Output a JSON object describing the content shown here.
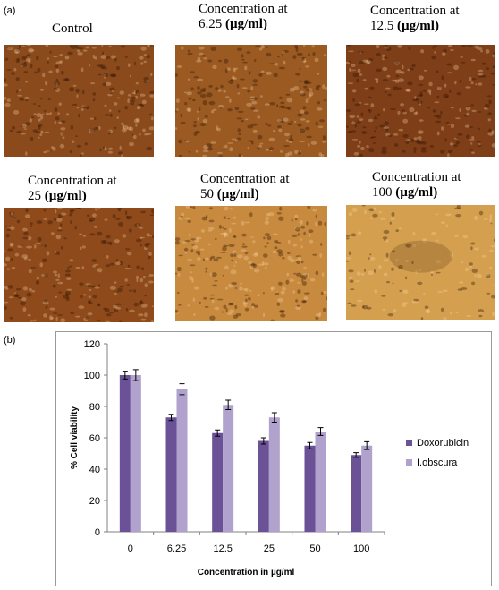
{
  "panel_a_label": "(a)",
  "panel_b_label": "(b)",
  "images": [
    {
      "caption_line1": "Control",
      "caption_num": "",
      "caption_unit": "",
      "tone": "#8a4a1c"
    },
    {
      "caption_line1": "Concentration at",
      "caption_num": "6.25",
      "caption_unit": "(µg/ml)",
      "tone": "#9a5a22"
    },
    {
      "caption_line1": "Concentration at",
      "caption_num": "12.5",
      "caption_unit": "(µg/ml)",
      "tone": "#7e3e18"
    },
    {
      "caption_line1": "Concentration at",
      "caption_num": "25",
      "caption_unit": "(µg/ml)",
      "tone": "#8e4a1a"
    },
    {
      "caption_line1": "Concentration at",
      "caption_num": "50",
      "caption_unit": "(µg/ml)",
      "tone": "#c88a3e"
    },
    {
      "caption_line1": "Concentration at",
      "caption_num": "100",
      "caption_unit": "(µg/ml)",
      "tone": "#d4a050"
    }
  ],
  "chart_data": {
    "type": "bar",
    "title": "",
    "xlabel": "Concentration in µg/ml",
    "ylabel": "% Cell viability",
    "categories": [
      "0",
      "6.25",
      "12.5",
      "25",
      "50",
      "100"
    ],
    "ylim": [
      0,
      120
    ],
    "yticks": [
      "0",
      "20",
      "40",
      "60",
      "80",
      "100",
      "120"
    ],
    "grid": false,
    "legend_position": "right",
    "series": [
      {
        "name": "Doxorubicin",
        "color": "#6b5296",
        "values": [
          100,
          73,
          63,
          58,
          55,
          49
        ],
        "errors": [
          2.5,
          2,
          2,
          2,
          2,
          1.5
        ]
      },
      {
        "name": "I.obscura",
        "color": "#b0a2cc",
        "values": [
          100,
          91,
          81,
          73,
          64,
          55
        ],
        "errors": [
          3.5,
          3.5,
          3,
          3,
          2.5,
          2.5
        ]
      }
    ]
  }
}
